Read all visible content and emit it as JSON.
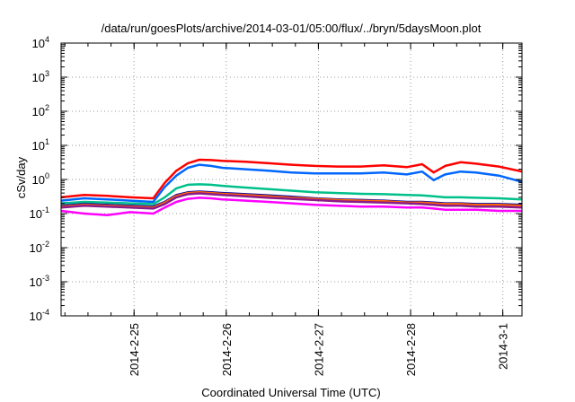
{
  "chart_data": {
    "type": "line",
    "title": "/data/run/goesPlots/archive/2014-03-01/05:00/flux/../bryn/5daysMoon.plot",
    "xlabel": "Coordinated Universal Time (UTC)",
    "ylabel": "cSv/day",
    "yscale": "log",
    "ylim": [
      0.0001,
      10000
    ],
    "yticks": [
      {
        "value": 0.0001,
        "exponent": "-4"
      },
      {
        "value": 0.001,
        "exponent": "-3"
      },
      {
        "value": 0.01,
        "exponent": "-2"
      },
      {
        "value": 0.1,
        "exponent": "-1"
      },
      {
        "value": 1,
        "exponent": "0"
      },
      {
        "value": 10,
        "exponent": "1"
      },
      {
        "value": 100,
        "exponent": "2"
      },
      {
        "value": 1000,
        "exponent": "3"
      },
      {
        "value": 10000,
        "exponent": "4"
      }
    ],
    "tick_base": "10",
    "xlim": [
      "2014-02-24T05:00",
      "2014-03-01T05:00"
    ],
    "xticks": [
      {
        "value": "2014-02-25T00:00",
        "label": "2014-2-25"
      },
      {
        "value": "2014-02-26T00:00",
        "label": "2014-2-26"
      },
      {
        "value": "2014-02-27T00:00",
        "label": "2014-2-27"
      },
      {
        "value": "2014-02-28T00:00",
        "label": "2014-2-28"
      },
      {
        "value": "2014-03-01T00:00",
        "label": "2014-3-1"
      }
    ],
    "grid": true,
    "x": [
      "2014-02-24T05:00",
      "2014-02-24T11:00",
      "2014-02-24T17:00",
      "2014-02-24T23:00",
      "2014-02-25T05:00",
      "2014-02-25T08:00",
      "2014-02-25T11:00",
      "2014-02-25T14:00",
      "2014-02-25T17:00",
      "2014-02-25T20:00",
      "2014-02-25T23:00",
      "2014-02-26T05:00",
      "2014-02-26T11:00",
      "2014-02-26T17:00",
      "2014-02-26T23:00",
      "2014-02-27T05:00",
      "2014-02-27T11:00",
      "2014-02-27T17:00",
      "2014-02-27T23:00",
      "2014-02-28T03:00",
      "2014-02-28T06:00",
      "2014-02-28T09:00",
      "2014-02-28T13:00",
      "2014-02-28T17:00",
      "2014-02-28T23:00",
      "2014-03-01T05:00"
    ],
    "series": [
      {
        "color": "#ff0000",
        "values": [
          0.3,
          0.35,
          0.33,
          0.3,
          0.28,
          0.8,
          1.8,
          3.0,
          3.8,
          3.7,
          3.5,
          3.3,
          3.0,
          2.7,
          2.5,
          2.4,
          2.4,
          2.6,
          2.3,
          2.8,
          1.6,
          2.5,
          3.2,
          2.9,
          2.4,
          1.7
        ]
      },
      {
        "color": "#0066ff",
        "values": [
          0.24,
          0.28,
          0.26,
          0.24,
          0.22,
          0.6,
          1.3,
          2.2,
          2.7,
          2.5,
          2.2,
          2.0,
          1.8,
          1.6,
          1.5,
          1.5,
          1.5,
          1.6,
          1.4,
          1.7,
          0.95,
          1.4,
          1.7,
          1.6,
          1.3,
          0.85
        ]
      },
      {
        "color": "#00c08a",
        "values": [
          0.2,
          0.22,
          0.21,
          0.2,
          0.19,
          0.3,
          0.55,
          0.7,
          0.72,
          0.7,
          0.65,
          0.58,
          0.52,
          0.47,
          0.42,
          0.4,
          0.38,
          0.37,
          0.35,
          0.34,
          0.32,
          0.3,
          0.3,
          0.29,
          0.28,
          0.26
        ]
      },
      {
        "color": "#0000aa",
        "values": [
          0.17,
          0.19,
          0.18,
          0.17,
          0.16,
          0.22,
          0.35,
          0.42,
          0.44,
          0.42,
          0.4,
          0.37,
          0.34,
          0.31,
          0.28,
          0.26,
          0.25,
          0.24,
          0.22,
          0.22,
          0.21,
          0.2,
          0.2,
          0.19,
          0.19,
          0.18
        ]
      },
      {
        "color": "#ff6600",
        "values": [
          0.16,
          0.18,
          0.17,
          0.16,
          0.15,
          0.21,
          0.33,
          0.4,
          0.42,
          0.4,
          0.38,
          0.35,
          0.32,
          0.29,
          0.27,
          0.25,
          0.24,
          0.23,
          0.21,
          0.21,
          0.2,
          0.19,
          0.19,
          0.18,
          0.18,
          0.17
        ]
      },
      {
        "color": "#8b1a8b",
        "values": [
          0.15,
          0.17,
          0.16,
          0.15,
          0.14,
          0.19,
          0.3,
          0.37,
          0.39,
          0.37,
          0.35,
          0.32,
          0.29,
          0.27,
          0.25,
          0.23,
          0.22,
          0.21,
          0.2,
          0.19,
          0.18,
          0.17,
          0.17,
          0.16,
          0.16,
          0.15
        ]
      },
      {
        "color": "#ff00ff",
        "values": [
          0.12,
          0.1,
          0.09,
          0.11,
          0.1,
          0.15,
          0.22,
          0.27,
          0.29,
          0.28,
          0.26,
          0.24,
          0.22,
          0.2,
          0.18,
          0.17,
          0.16,
          0.16,
          0.15,
          0.15,
          0.14,
          0.13,
          0.13,
          0.13,
          0.12,
          0.12
        ]
      }
    ]
  }
}
